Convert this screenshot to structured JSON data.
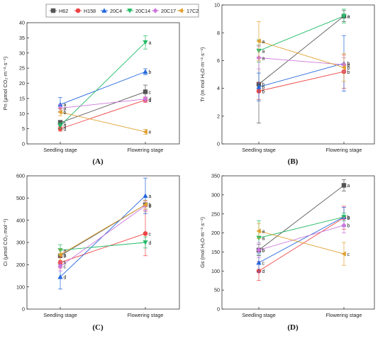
{
  "legend": [
    {
      "name": "H62",
      "color": "#555555",
      "marker": "square"
    },
    {
      "name": "H158",
      "color": "#ee4444",
      "marker": "circle"
    },
    {
      "name": "20C4",
      "color": "#2266dd",
      "marker": "triangle-up"
    },
    {
      "name": "20C14",
      "color": "#22bb66",
      "marker": "triangle-down"
    },
    {
      "name": "20C17",
      "color": "#cc77dd",
      "marker": "diamond"
    },
    {
      "name": "17C2",
      "color": "#e0a030",
      "marker": "triangle-left"
    }
  ],
  "chart_data": [
    {
      "type": "line",
      "panel_label": "(A)",
      "ylabel": "Pn (μmol CO₂·m⁻²·s⁻¹)",
      "categories": [
        "Seedling stage",
        "Flowering stage"
      ],
      "ylim": [
        0,
        40
      ],
      "yticks": [
        0,
        5,
        10,
        15,
        20,
        25,
        30,
        35,
        40
      ],
      "series": [
        {
          "name": "H62",
          "values": [
            7.0,
            17.2
          ],
          "errors": [
            0.8,
            2.2
          ],
          "letters": [
            "c",
            "c"
          ]
        },
        {
          "name": "H158",
          "values": [
            5.0,
            14.5
          ],
          "errors": [
            0.8,
            0.8
          ],
          "letters": [
            "d",
            "d"
          ]
        },
        {
          "name": "20C4",
          "values": [
            13.0,
            23.8
          ],
          "errors": [
            2.3,
            1.0
          ],
          "letters": [
            "a",
            "b"
          ]
        },
        {
          "name": "20C14",
          "values": [
            6.0,
            33.5
          ],
          "errors": [
            1.0,
            2.2
          ],
          "letters": [
            "d",
            "a"
          ]
        },
        {
          "name": "20C17",
          "values": [
            11.8,
            14.8
          ],
          "errors": [
            1.2,
            0.8
          ],
          "letters": [
            "a",
            "d"
          ]
        },
        {
          "name": "17C2",
          "values": [
            10.5,
            4.0
          ],
          "errors": [
            1.2,
            0.8
          ],
          "letters": [
            "b",
            "e"
          ]
        }
      ]
    },
    {
      "type": "line",
      "panel_label": "(B)",
      "ylabel": "Tr (m mol H₂O·m⁻²·s⁻¹)",
      "categories": [
        "Seedling stage",
        "Flowering stage"
      ],
      "ylim": [
        0,
        10
      ],
      "yticks": [
        0,
        2,
        4,
        6,
        8,
        10
      ],
      "series": [
        {
          "name": "H62",
          "values": [
            4.3,
            9.2
          ],
          "errors": [
            2.8,
            0.4
          ],
          "letters": [
            "b",
            "a"
          ]
        },
        {
          "name": "H158",
          "values": [
            3.8,
            5.2
          ],
          "errors": [
            0.6,
            1.2
          ],
          "letters": [
            "b",
            "b"
          ]
        },
        {
          "name": "20C4",
          "values": [
            4.1,
            5.8
          ],
          "errors": [
            1.0,
            2.0
          ],
          "letters": [
            "b",
            "b"
          ]
        },
        {
          "name": "20C14",
          "values": [
            6.7,
            9.2
          ],
          "errors": [
            0.8,
            0.5
          ],
          "letters": [
            "a",
            "a"
          ]
        },
        {
          "name": "20C17",
          "values": [
            6.2,
            5.7
          ],
          "errors": [
            0.8,
            0.5
          ],
          "letters": [
            "a",
            "b"
          ]
        },
        {
          "name": "17C2",
          "values": [
            7.4,
            5.5
          ],
          "errors": [
            1.4,
            1.0
          ],
          "letters": [
            "a",
            "b"
          ]
        }
      ]
    },
    {
      "type": "line",
      "panel_label": "(C)",
      "ylabel": "Ci (μmol CO₂·mol⁻¹)",
      "categories": [
        "Seedling stage",
        "Flowering stage"
      ],
      "ylim": [
        0,
        600
      ],
      "yticks": [
        0,
        100,
        200,
        300,
        400,
        500,
        600
      ],
      "series": [
        {
          "name": "H62",
          "values": [
            240,
            470
          ],
          "errors": [
            30,
            20
          ],
          "letters": [
            "b",
            "b"
          ]
        },
        {
          "name": "H158",
          "values": [
            210,
            340
          ],
          "errors": [
            25,
            100
          ],
          "letters": [
            "b",
            "c"
          ]
        },
        {
          "name": "20C4",
          "values": [
            145,
            510
          ],
          "errors": [
            55,
            80
          ],
          "letters": [
            "d",
            "a"
          ]
        },
        {
          "name": "20C14",
          "values": [
            265,
            300
          ],
          "errors": [
            25,
            25
          ],
          "letters": [
            "a",
            "d"
          ]
        },
        {
          "name": "20C17",
          "values": [
            192,
            465
          ],
          "errors": [
            20,
            20
          ],
          "letters": [
            "c",
            "b"
          ]
        },
        {
          "name": "17C2",
          "values": [
            245,
            470
          ],
          "errors": [
            25,
            20
          ],
          "letters": [
            "a",
            "b"
          ]
        }
      ]
    },
    {
      "type": "line",
      "panel_label": "(D)",
      "ylabel": "Gs (mol H₂O·m⁻²·s⁻¹)",
      "categories": [
        "Seedling stage",
        "Flowering stage"
      ],
      "ylim": [
        0,
        350
      ],
      "yticks": [
        0,
        50,
        100,
        150,
        200,
        250,
        300,
        350
      ],
      "series": [
        {
          "name": "H62",
          "values": [
            155,
            325
          ],
          "errors": [
            15,
            15
          ],
          "letters": [
            "b",
            "a"
          ]
        },
        {
          "name": "H158",
          "values": [
            100,
            240
          ],
          "errors": [
            25,
            30
          ],
          "letters": [
            "d",
            "b"
          ]
        },
        {
          "name": "20C4",
          "values": [
            122,
            242
          ],
          "errors": [
            25,
            25
          ],
          "letters": [
            "c",
            "b"
          ]
        },
        {
          "name": "20C14",
          "values": [
            187,
            242
          ],
          "errors": [
            45,
            10
          ],
          "letters": [
            "a",
            "b"
          ]
        },
        {
          "name": "20C17",
          "values": [
            155,
            220
          ],
          "errors": [
            20,
            20
          ],
          "letters": [
            "b",
            "b"
          ]
        },
        {
          "name": "17C2",
          "values": [
            205,
            145
          ],
          "errors": [
            20,
            30
          ],
          "letters": [
            "a",
            "c"
          ]
        }
      ]
    }
  ]
}
